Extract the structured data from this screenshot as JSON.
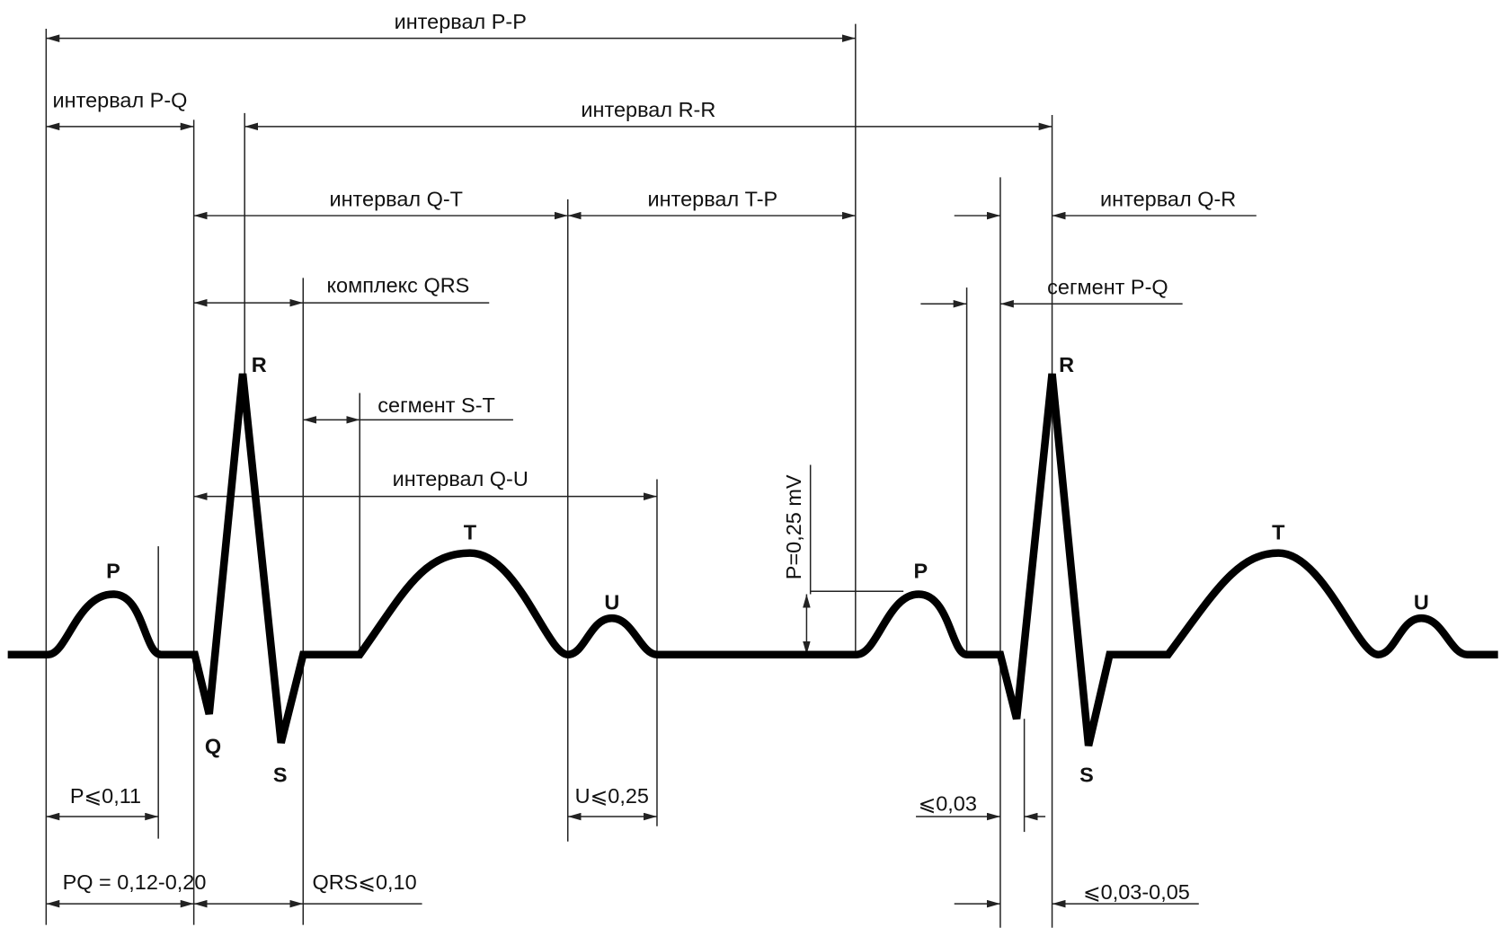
{
  "intervals": {
    "p_p": "интервал  P-P",
    "p_q": "интервал  P-Q",
    "r_r": "интервал  R-R",
    "q_t": "интервал  Q-T",
    "t_p": "интервал  T-P",
    "q_r": "интервал  Q-R",
    "q_u": "интервал  Q-U",
    "qrs": "комплекс  QRS",
    "seg_pq": "сегмент  P-Q",
    "seg_st": "сегмент  S-T",
    "amplitude": "P=0,25 mV"
  },
  "waves": [
    "P",
    "R",
    "Q",
    "S",
    "T",
    "U",
    "P",
    "R",
    "S",
    "T",
    "U"
  ],
  "measurements": {
    "p": "P⩽0,11",
    "pq": "PQ = 0,12-0,20",
    "qrs": "QRS⩽0,10",
    "u": "U⩽0,25",
    "q": "⩽0,03",
    "qr": "⩽0,03-0,05"
  }
}
